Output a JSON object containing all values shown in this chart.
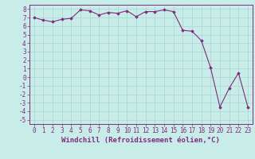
{
  "x": [
    0,
    1,
    2,
    3,
    4,
    5,
    6,
    7,
    8,
    9,
    10,
    11,
    12,
    13,
    14,
    15,
    16,
    17,
    18,
    19,
    20,
    21,
    22,
    23
  ],
  "y": [
    7.0,
    6.7,
    6.5,
    6.8,
    6.9,
    7.9,
    7.8,
    7.3,
    7.6,
    7.5,
    7.8,
    7.1,
    7.7,
    7.7,
    7.9,
    7.7,
    5.5,
    5.4,
    4.3,
    1.1,
    -3.5,
    -1.3,
    0.5,
    -3.5
  ],
  "line_color": "#7f2b7f",
  "marker": "D",
  "marker_size": 1.8,
  "background_color": "#c8ece8",
  "grid_color": "#aad4d0",
  "xlabel": "Windchill (Refroidissement éolien,°C)",
  "xlabel_fontsize": 6.5,
  "ylabel_ticks": [
    -5,
    -4,
    -3,
    -2,
    -1,
    0,
    1,
    2,
    3,
    4,
    5,
    6,
    7,
    8
  ],
  "xtick_labels": [
    "0",
    "1",
    "2",
    "3",
    "4",
    "5",
    "6",
    "7",
    "8",
    "9",
    "10",
    "11",
    "12",
    "13",
    "14",
    "15",
    "16",
    "17",
    "18",
    "19",
    "20",
    "21",
    "22",
    "23"
  ],
  "ylim": [
    -5.5,
    8.5
  ],
  "xlim": [
    -0.5,
    23.5
  ],
  "tick_fontsize": 5.5,
  "tick_color": "#7f2b7f",
  "spine_color": "#7f2b7f",
  "linewidth": 0.8
}
